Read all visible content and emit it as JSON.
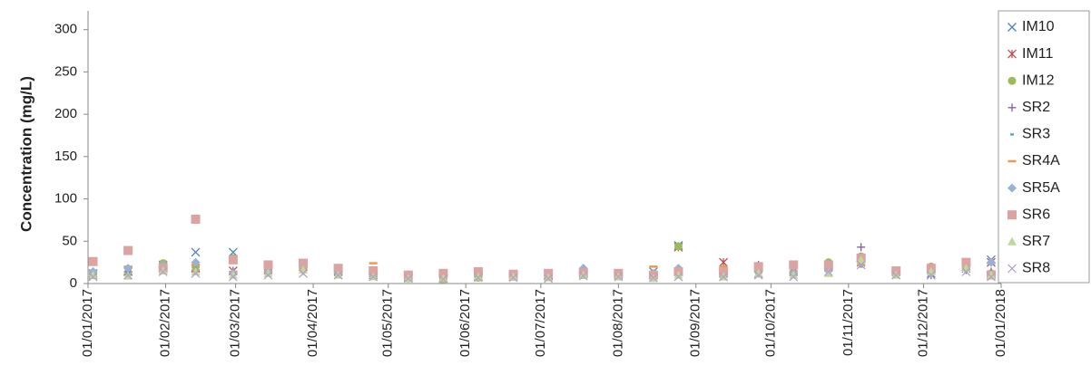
{
  "chart_data": {
    "type": "scatter",
    "y_label": "Concentration (mg/L)",
    "x": [
      "2017-01-03",
      "2017-01-17",
      "2017-01-31",
      "2017-02-13",
      "2017-02-28",
      "2017-03-14",
      "2017-03-28",
      "2017-04-11",
      "2017-04-25",
      "2017-05-09",
      "2017-05-23",
      "2017-06-06",
      "2017-06-20",
      "2017-07-04",
      "2017-07-18",
      "2017-08-01",
      "2017-08-15",
      "2017-08-25",
      "2017-09-12",
      "2017-09-26",
      "2017-10-10",
      "2017-10-24",
      "2017-11-06",
      "2017-11-20",
      "2017-12-04",
      "2017-12-18",
      "2017-12-28"
    ],
    "series": [
      {
        "name": "IM10",
        "color": "#4f81bd",
        "marker": "x",
        "values": [
          12,
          15,
          20,
          37,
          37,
          18,
          20,
          15,
          12,
          8,
          7,
          9,
          8,
          10,
          12,
          10,
          14,
          45,
          12,
          18,
          14,
          20,
          25,
          15,
          12,
          18,
          28
        ]
      },
      {
        "name": "IM11",
        "color": "#c0504d",
        "marker": "star",
        "values": [
          10,
          14,
          22,
          18,
          15,
          16,
          24,
          14,
          10,
          7,
          6,
          8,
          9,
          9,
          11,
          12,
          10,
          43,
          25,
          12,
          16,
          22,
          30,
          14,
          10,
          20,
          25
        ]
      },
      {
        "name": "IM12",
        "color": "#9bbb59",
        "marker": "circle",
        "values": [
          11,
          13,
          24,
          20,
          30,
          14,
          18,
          12,
          9,
          6,
          5,
          7,
          8,
          8,
          10,
          9,
          8,
          44,
          10,
          14,
          12,
          25,
          32,
          12,
          20,
          22,
          12
        ]
      },
      {
        "name": "SR2",
        "color": "#8064a2",
        "marker": "plus",
        "values": [
          12,
          14,
          18,
          15,
          14,
          16,
          15,
          13,
          10,
          8,
          8,
          9,
          10,
          9,
          13,
          12,
          11,
          14,
          14,
          22,
          15,
          18,
          43,
          15,
          12,
          16,
          14
        ]
      },
      {
        "name": "SR3",
        "color": "#4bacc6",
        "marker": "shortdash",
        "values": [
          10,
          12,
          15,
          14,
          12,
          13,
          14,
          12,
          9,
          7,
          7,
          8,
          9,
          8,
          11,
          10,
          10,
          12,
          12,
          14,
          12,
          14,
          20,
          12,
          11,
          14,
          12
        ]
      },
      {
        "name": "SR4A",
        "color": "#f79646",
        "marker": "dash",
        "values": [
          15,
          20,
          18,
          22,
          14,
          15,
          16,
          14,
          24,
          8,
          9,
          10,
          10,
          9,
          12,
          10,
          20,
          15,
          20,
          15,
          14,
          16,
          22,
          15,
          13,
          16,
          14
        ]
      },
      {
        "name": "SR5A",
        "color": "#95b3d7",
        "marker": "diamond",
        "values": [
          14,
          18,
          22,
          25,
          12,
          14,
          20,
          12,
          10,
          9,
          8,
          10,
          9,
          10,
          18,
          10,
          12,
          18,
          12,
          14,
          12,
          15,
          25,
          12,
          12,
          18,
          25
        ]
      },
      {
        "name": "SR6",
        "color": "#dba3a1",
        "marker": "square",
        "values": [
          26,
          39,
          18,
          76,
          28,
          22,
          24,
          18,
          15,
          10,
          12,
          14,
          11,
          12,
          13,
          12,
          10,
          14,
          14,
          20,
          22,
          22,
          30,
          15,
          18,
          25,
          10
        ]
      },
      {
        "name": "SR7",
        "color": "#c3d69b",
        "marker": "triangle",
        "values": [
          10,
          9,
          15,
          14,
          10,
          12,
          16,
          10,
          8,
          6,
          6,
          8,
          8,
          7,
          10,
          8,
          6,
          10,
          8,
          12,
          10,
          12,
          28,
          10,
          14,
          18,
          10
        ]
      },
      {
        "name": "SR8",
        "color": "#b3a2c7",
        "marker": "x",
        "values": [
          8,
          10,
          14,
          12,
          8,
          10,
          12,
          10,
          8,
          6,
          5,
          7,
          7,
          6,
          9,
          8,
          7,
          8,
          8,
          10,
          8,
          14,
          22,
          10,
          10,
          14,
          8
        ]
      }
    ],
    "xlim": [
      "2017-01-01",
      "2018-01-01"
    ],
    "xticks": [
      {
        "value": "2017-01-01",
        "label": "01/01/2017"
      },
      {
        "value": "2017-02-01",
        "label": "01/02/2017"
      },
      {
        "value": "2017-03-01",
        "label": "01/03/2017"
      },
      {
        "value": "2017-04-01",
        "label": "01/04/2017"
      },
      {
        "value": "2017-05-01",
        "label": "01/05/2017"
      },
      {
        "value": "2017-06-01",
        "label": "01/06/2017"
      },
      {
        "value": "2017-07-01",
        "label": "01/07/2017"
      },
      {
        "value": "2017-08-01",
        "label": "01/08/2017"
      },
      {
        "value": "2017-09-01",
        "label": "01/09/2017"
      },
      {
        "value": "2017-10-01",
        "label": "01/10/2017"
      },
      {
        "value": "2017-11-01",
        "label": "01/11/2017"
      },
      {
        "value": "2017-12-01",
        "label": "01/12/2017"
      },
      {
        "value": "2018-01-01",
        "label": "01/01/2018"
      }
    ],
    "ylim": [
      0,
      320
    ],
    "yticks": [
      0,
      50,
      100,
      150,
      200,
      250,
      300
    ],
    "grid": false,
    "legend": "right"
  }
}
